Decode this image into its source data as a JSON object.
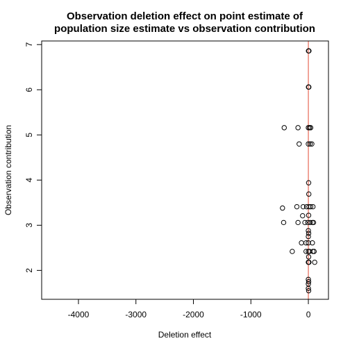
{
  "chart_data": {
    "type": "scatter",
    "title_line1": "Observation deletion effect on point estimate of",
    "title_line2": "population size estimate vs observation contribution",
    "xlabel": "Deletion effect",
    "ylabel": "Observation contribution",
    "xlim": [
      -4640,
      350
    ],
    "ylim": [
      1.36,
      7.08
    ],
    "x_ticks": [
      -4000,
      -3000,
      -2000,
      -1000,
      0
    ],
    "y_ticks": [
      2,
      3,
      4,
      5,
      6,
      7
    ],
    "reference_line_x": 0,
    "reference_line_color": "#e34a33",
    "point_color": "#000000",
    "points": [
      {
        "x": 2,
        "y": 6.86
      },
      {
        "x": 6,
        "y": 6.86
      },
      {
        "x": 10,
        "y": 6.86
      },
      {
        "x": 2,
        "y": 6.06
      },
      {
        "x": 8,
        "y": 6.06
      },
      {
        "x": -420,
        "y": 5.16
      },
      {
        "x": -180,
        "y": 5.16
      },
      {
        "x": 0,
        "y": 5.16
      },
      {
        "x": 20,
        "y": 5.16
      },
      {
        "x": 40,
        "y": 5.16
      },
      {
        "x": -160,
        "y": 4.8
      },
      {
        "x": 0,
        "y": 4.8
      },
      {
        "x": 30,
        "y": 4.8
      },
      {
        "x": 60,
        "y": 4.8
      },
      {
        "x": 5,
        "y": 3.94
      },
      {
        "x": 8,
        "y": 3.69
      },
      {
        "x": -450,
        "y": 3.38
      },
      {
        "x": -200,
        "y": 3.41
      },
      {
        "x": -90,
        "y": 3.41
      },
      {
        "x": -30,
        "y": 3.41
      },
      {
        "x": 10,
        "y": 3.41
      },
      {
        "x": 40,
        "y": 3.41
      },
      {
        "x": 80,
        "y": 3.41
      },
      {
        "x": 5,
        "y": 3.22
      },
      {
        "x": -100,
        "y": 3.21
      },
      {
        "x": -430,
        "y": 3.06
      },
      {
        "x": -180,
        "y": 3.06
      },
      {
        "x": -60,
        "y": 3.06
      },
      {
        "x": -10,
        "y": 3.06
      },
      {
        "x": 30,
        "y": 3.06
      },
      {
        "x": 70,
        "y": 3.06
      },
      {
        "x": 90,
        "y": 3.06
      },
      {
        "x": 0,
        "y": 2.88
      },
      {
        "x": 5,
        "y": 2.82
      },
      {
        "x": 0,
        "y": 2.75
      },
      {
        "x": -120,
        "y": 2.61
      },
      {
        "x": -40,
        "y": 2.61
      },
      {
        "x": 0,
        "y": 2.61
      },
      {
        "x": 70,
        "y": 2.61
      },
      {
        "x": -280,
        "y": 2.42
      },
      {
        "x": -40,
        "y": 2.42
      },
      {
        "x": 0,
        "y": 2.42
      },
      {
        "x": 20,
        "y": 2.42
      },
      {
        "x": 80,
        "y": 2.42
      },
      {
        "x": 100,
        "y": 2.42
      },
      {
        "x": 5,
        "y": 2.3
      },
      {
        "x": 0,
        "y": 2.18
      },
      {
        "x": 10,
        "y": 2.18
      },
      {
        "x": 110,
        "y": 2.18
      },
      {
        "x": 0,
        "y": 1.8
      },
      {
        "x": 5,
        "y": 1.75
      },
      {
        "x": 0,
        "y": 1.7
      },
      {
        "x": 0,
        "y": 1.6
      },
      {
        "x": 5,
        "y": 1.55
      }
    ]
  }
}
